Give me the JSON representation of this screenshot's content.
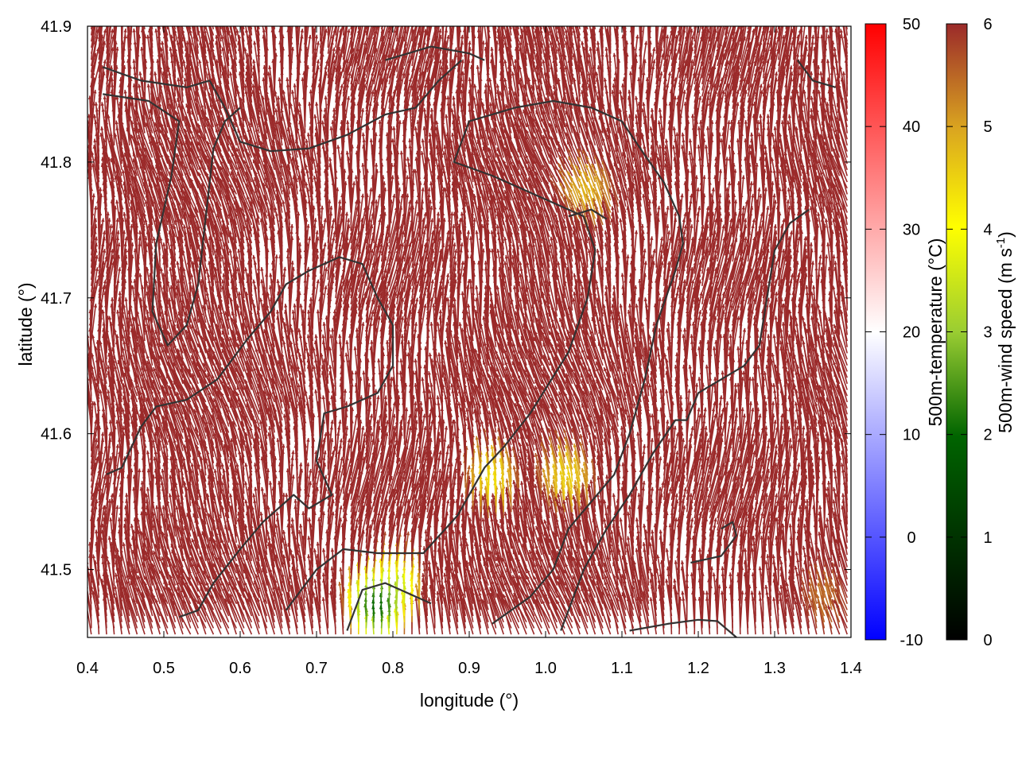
{
  "chart_data": {
    "type": "vector-field",
    "title": "",
    "xlabel": "longitude (°)",
    "ylabel": "latitude (°)",
    "xlim": [
      0.4,
      1.4
    ],
    "ylim": [
      41.45,
      41.9
    ],
    "xticks": [
      "0.4",
      "0.5",
      "0.6",
      "0.7",
      "0.8",
      "0.9",
      "1.0",
      "1.1",
      "1.2",
      "1.3",
      "1.4"
    ],
    "yticks": [
      "41.5",
      "41.6",
      "41.7",
      "41.8",
      "41.9"
    ],
    "grid": false,
    "temperature_colorbar": {
      "label": "500m-temperature (°C)",
      "range": [
        -10,
        50
      ],
      "ticks": [
        "-10",
        "0",
        "10",
        "20",
        "30",
        "40",
        "50"
      ],
      "colors": [
        "#0000ff",
        "#ffffff",
        "#ff0000"
      ]
    },
    "wind_colorbar": {
      "label_main": "500m-wind speed (m s",
      "label_sup": "-1",
      "label_end": ")",
      "range": [
        0,
        6
      ],
      "ticks": [
        "0",
        "1",
        "2",
        "3",
        "4",
        "5",
        "6"
      ],
      "colors": [
        "#000000",
        "#006400",
        "#9acd32",
        "#ffff00",
        "#daa520",
        "#9b2a2a"
      ]
    },
    "wind_field": {
      "dominant_color": "#9b2a2a",
      "dominant_speed": ">= 6",
      "general_direction": "northward (NNW)",
      "low_speed_regions": [
        {
          "lon": 1.06,
          "lat": 41.77,
          "speed": 4.6
        },
        {
          "lon": 0.93,
          "lat": 41.56,
          "speed": 4.0
        },
        {
          "lon": 1.03,
          "lat": 41.56,
          "speed": 4.2
        },
        {
          "lon": 0.8,
          "lat": 41.48,
          "speed": 2.6
        },
        {
          "lon": 0.78,
          "lat": 41.47,
          "speed": 1.2
        },
        {
          "lon": 1.37,
          "lat": 41.47,
          "speed": 5.3
        }
      ]
    },
    "contours": [
      [
        [
          0.42,
          41.87
        ],
        [
          0.47,
          41.86
        ],
        [
          0.53,
          41.855
        ],
        [
          0.56,
          41.86
        ],
        [
          0.58,
          41.84
        ],
        [
          0.6,
          41.815
        ],
        [
          0.64,
          41.808
        ],
        [
          0.69,
          41.81
        ],
        [
          0.74,
          41.82
        ],
        [
          0.79,
          41.835
        ],
        [
          0.83,
          41.84
        ],
        [
          0.86,
          41.86
        ],
        [
          0.89,
          41.875
        ]
      ],
      [
        [
          0.42,
          41.85
        ],
        [
          0.48,
          41.845
        ],
        [
          0.52,
          41.83
        ],
        [
          0.51,
          41.79
        ],
        [
          0.49,
          41.74
        ],
        [
          0.485,
          41.69
        ],
        [
          0.505,
          41.665
        ],
        [
          0.53,
          41.68
        ],
        [
          0.545,
          41.71
        ],
        [
          0.555,
          41.76
        ],
        [
          0.565,
          41.81
        ],
        [
          0.58,
          41.83
        ],
        [
          0.6,
          41.84
        ]
      ],
      [
        [
          0.425,
          41.57
        ],
        [
          0.445,
          41.575
        ],
        [
          0.47,
          41.605
        ],
        [
          0.49,
          41.62
        ],
        [
          0.53,
          41.625
        ],
        [
          0.57,
          41.64
        ],
        [
          0.61,
          41.67
        ],
        [
          0.64,
          41.69
        ],
        [
          0.66,
          41.71
        ],
        [
          0.69,
          41.72
        ],
        [
          0.73,
          41.73
        ],
        [
          0.76,
          41.725
        ],
        [
          0.78,
          41.7
        ],
        [
          0.8,
          41.68
        ],
        [
          0.8,
          41.65
        ],
        [
          0.78,
          41.63
        ],
        [
          0.74,
          41.62
        ],
        [
          0.71,
          41.615
        ],
        [
          0.7,
          41.58
        ],
        [
          0.72,
          41.555
        ],
        [
          0.69,
          41.545
        ],
        [
          0.67,
          41.555
        ],
        [
          0.63,
          41.535
        ],
        [
          0.6,
          41.515
        ],
        [
          0.565,
          41.49
        ],
        [
          0.545,
          41.47
        ],
        [
          0.52,
          41.465
        ]
      ],
      [
        [
          0.66,
          41.47
        ],
        [
          0.7,
          41.5
        ],
        [
          0.735,
          41.515
        ],
        [
          0.78,
          41.512
        ],
        [
          0.84,
          41.512
        ],
        [
          0.885,
          41.54
        ],
        [
          0.92,
          41.575
        ],
        [
          0.945,
          41.59
        ],
        [
          0.98,
          41.615
        ],
        [
          1.03,
          41.66
        ],
        [
          1.055,
          41.7
        ],
        [
          1.065,
          41.735
        ],
        [
          1.05,
          41.76
        ],
        [
          0.99,
          41.775
        ],
        [
          0.93,
          41.79
        ],
        [
          0.88,
          41.8
        ],
        [
          0.9,
          41.83
        ],
        [
          0.96,
          41.84
        ],
        [
          1.01,
          41.845
        ],
        [
          1.06,
          41.84
        ],
        [
          1.1,
          41.83
        ],
        [
          1.13,
          41.805
        ],
        [
          1.155,
          41.785
        ],
        [
          1.175,
          41.76
        ],
        [
          1.18,
          41.74
        ],
        [
          1.17,
          41.72
        ],
        [
          1.145,
          41.68
        ],
        [
          1.13,
          41.64
        ],
        [
          1.11,
          41.6
        ],
        [
          1.09,
          41.57
        ],
        [
          1.06,
          41.55
        ],
        [
          1.03,
          41.53
        ],
        [
          1.01,
          41.5
        ],
        [
          0.98,
          41.48
        ],
        [
          0.93,
          41.46
        ]
      ],
      [
        [
          1.02,
          41.455
        ],
        [
          1.05,
          41.5
        ],
        [
          1.08,
          41.53
        ],
        [
          1.11,
          41.555
        ],
        [
          1.14,
          41.585
        ],
        [
          1.17,
          41.61
        ],
        [
          1.185,
          41.61
        ],
        [
          1.2,
          41.63
        ],
        [
          1.23,
          41.64
        ],
        [
          1.26,
          41.65
        ],
        [
          1.28,
          41.665
        ],
        [
          1.29,
          41.7
        ],
        [
          1.3,
          41.735
        ],
        [
          1.32,
          41.755
        ],
        [
          1.345,
          41.765
        ]
      ],
      [
        [
          0.74,
          41.455
        ],
        [
          0.75,
          41.47
        ],
        [
          0.76,
          41.485
        ],
        [
          0.79,
          41.49
        ],
        [
          0.83,
          41.48
        ],
        [
          0.85,
          41.475
        ]
      ],
      [
        [
          1.11,
          41.455
        ],
        [
          1.16,
          41.46
        ],
        [
          1.2,
          41.463
        ],
        [
          1.225,
          41.462
        ],
        [
          1.25,
          41.45
        ]
      ],
      [
        [
          1.19,
          41.505
        ],
        [
          1.23,
          41.51
        ],
        [
          1.25,
          41.525
        ],
        [
          1.245,
          41.535
        ],
        [
          1.23,
          41.53
        ]
      ],
      [
        [
          1.33,
          41.875
        ],
        [
          1.35,
          41.86
        ],
        [
          1.38,
          41.855
        ]
      ],
      [
        [
          0.79,
          41.875
        ],
        [
          0.85,
          41.885
        ],
        [
          0.9,
          41.88
        ],
        [
          0.92,
          41.875
        ]
      ],
      [
        [
          1.03,
          41.76
        ],
        [
          1.06,
          41.765
        ],
        [
          1.08,
          41.758
        ]
      ]
    ]
  }
}
